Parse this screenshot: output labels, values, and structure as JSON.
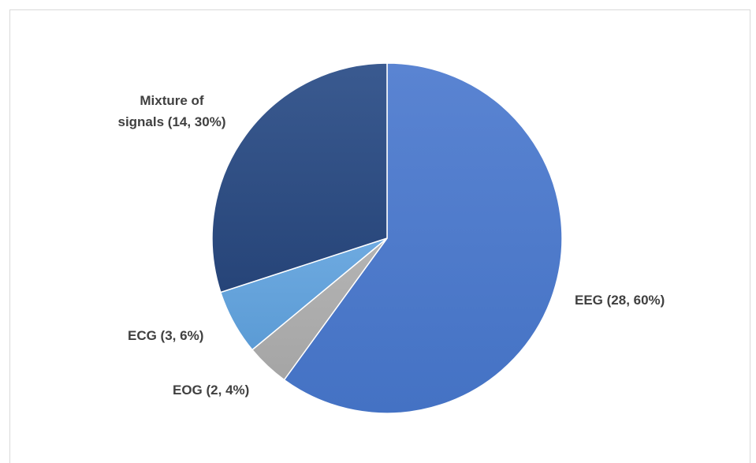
{
  "chart_data": {
    "type": "pie",
    "start_angle_deg": 0,
    "direction": "clockwise",
    "slices": [
      {
        "category": "EEG",
        "count": 28,
        "percent": 60,
        "label_lines": [
          "EEG (28, 60%)"
        ],
        "color": "#4472C4",
        "color_light": "#5a84d2",
        "label_side": "right"
      },
      {
        "category": "EOG",
        "count": 2,
        "percent": 4,
        "label_lines": [
          "EOG (2, 4%)"
        ],
        "color": "#A5A5A5",
        "color_light": "#b4b4b4",
        "label_side": "below-left"
      },
      {
        "category": "ECG",
        "count": 3,
        "percent": 6,
        "label_lines": [
          "ECG (3, 6%)"
        ],
        "color": "#5B9BD5",
        "color_light": "#6eaae0",
        "label_side": "left"
      },
      {
        "category": "Mixture of signals",
        "count": 14,
        "percent": 30,
        "label_lines": [
          "Mixture of",
          "signals (14, 30%)"
        ],
        "color": "#264478",
        "color_light": "#3a5a90",
        "label_side": "top-left"
      }
    ]
  }
}
